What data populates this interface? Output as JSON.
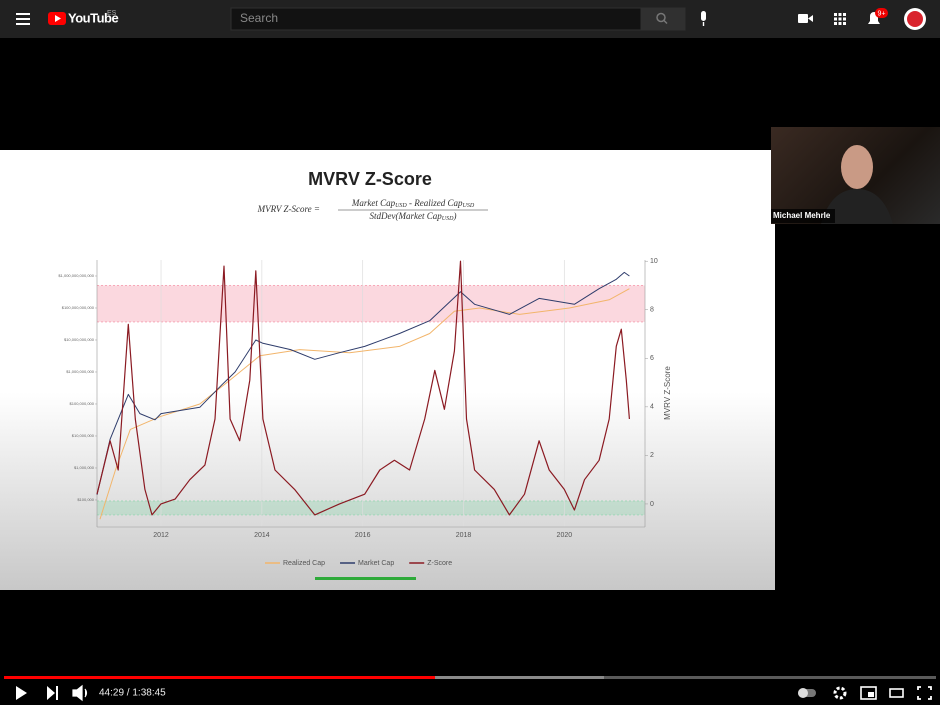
{
  "header": {
    "logo": "YouTube",
    "region": "ES",
    "search_placeholder": "Search",
    "notifications": "9+"
  },
  "webcam": {
    "name": "Michael Mehrle"
  },
  "player": {
    "time": "44:29 / 1:38:45"
  },
  "video": {
    "chart": {
      "type": "line",
      "title": "MVRV Z-Score",
      "formula": {
        "lhs": "MVRV Z-Score =",
        "numerator": [
          "Market Cap",
          "USD",
          " - Realized Cap",
          "USD"
        ],
        "denominator": [
          "StdDev(Market Cap",
          "USD",
          ")"
        ]
      },
      "y2_label": "MVRV Z-Score",
      "xlim": [
        2010.73,
        2021.6
      ],
      "xticks": [
        2012,
        2014,
        2016,
        2018,
        2020
      ],
      "log_y": true,
      "ylim": [
        14300,
        3162000000000
      ],
      "yticks": [
        {
          "value": 100000,
          "label": "$100,000"
        },
        {
          "value": 1000000,
          "label": "$1,000,000"
        },
        {
          "value": 10000000,
          "label": "$10,000,000"
        },
        {
          "value": 100000000,
          "label": "$100,000,000"
        },
        {
          "value": 1000000000,
          "label": "$1,000,000,000"
        },
        {
          "value": 10000000000,
          "label": "$10,000,000,000"
        },
        {
          "value": 100000000000,
          "label": "$100,000,000,000"
        },
        {
          "value": 1000000000000,
          "label": "$1,000,000,000,000"
        }
      ],
      "y2lim": [
        -0.95,
        10.05
      ],
      "y2ticks": [
        0,
        2,
        4,
        6,
        8,
        10
      ],
      "bands": [
        {
          "from": 7.5,
          "to": 9.0,
          "color": "#f7a8b8"
        },
        {
          "from": -0.45,
          "to": 0.12,
          "color": "#9fd8b8"
        }
      ],
      "series": [
        {
          "name": "Realized Cap",
          "color": "#f2b56b",
          "axis": "y",
          "x": [
            2010.79,
            2011.09,
            2011.39,
            2011.98,
            2012.77,
            2013.37,
            2013.96,
            2014.75,
            2015.74,
            2016.73,
            2017.33,
            2017.82,
            2018.32,
            2019.11,
            2020.1,
            2020.89,
            2021.29
          ],
          "values": [
            25000,
            800000,
            16000000,
            40000000,
            100000000,
            560000000,
            3200000000,
            5000000000,
            4000000000,
            6300000000,
            16000000000,
            79000000000,
            100000000000,
            63000000000,
            100000000000,
            180000000000,
            400000000000
          ]
        },
        {
          "name": "Market Cap",
          "color": "#2e3c6b",
          "axis": "y",
          "x": [
            2010.73,
            2010.99,
            2011.35,
            2011.58,
            2011.88,
            2012.0,
            2012.77,
            2013.21,
            2013.47,
            2013.88,
            2014.02,
            2014.57,
            2015.05,
            2015.54,
            2016.04,
            2016.73,
            2017.33,
            2017.94,
            2018.22,
            2018.91,
            2019.5,
            2020.2,
            2020.69,
            2021.03,
            2021.19,
            2021.29
          ],
          "values": [
            145000,
            7900000,
            200000000,
            50000000,
            32000000,
            50000000,
            79000000,
            400000000,
            1000000000,
            10000000000,
            7900000000,
            5000000000,
            2500000000,
            4000000000,
            6300000000,
            16000000000,
            40000000000,
            320000000000,
            130000000000,
            63000000000,
            200000000000,
            130000000000,
            400000000000,
            790000000000,
            1300000000000,
            1000000000000
          ]
        },
        {
          "name": "Z-Score",
          "color": "#8b1a22",
          "axis": "y2",
          "x": [
            2010.73,
            2010.99,
            2011.15,
            2011.35,
            2011.49,
            2011.68,
            2011.82,
            2012.0,
            2012.28,
            2012.57,
            2012.87,
            2013.07,
            2013.25,
            2013.37,
            2013.56,
            2013.76,
            2013.88,
            2014.02,
            2014.26,
            2014.65,
            2015.05,
            2015.54,
            2016.04,
            2016.34,
            2016.63,
            2016.93,
            2017.23,
            2017.43,
            2017.62,
            2017.82,
            2017.94,
            2018.06,
            2018.22,
            2018.61,
            2018.91,
            2019.21,
            2019.5,
            2019.7,
            2020.0,
            2020.2,
            2020.4,
            2020.69,
            2020.89,
            2021.03,
            2021.13,
            2021.23,
            2021.29
          ],
          "values": [
            0.4,
            2.6,
            1.4,
            7.4,
            3.5,
            0.6,
            -0.45,
            0,
            0.2,
            1.0,
            1.6,
            3.5,
            9.8,
            3.5,
            2.6,
            5.1,
            9.6,
            3.5,
            1.4,
            0.6,
            -0.45,
            0,
            0.4,
            1.4,
            1.8,
            1.4,
            3.5,
            5.5,
            3.9,
            6.3,
            10.0,
            3.5,
            1.4,
            0.6,
            -0.45,
            0.4,
            2.6,
            1.4,
            0.6,
            -0.25,
            1.0,
            1.8,
            3.5,
            6.5,
            7.2,
            5.1,
            3.5
          ]
        }
      ]
    }
  }
}
